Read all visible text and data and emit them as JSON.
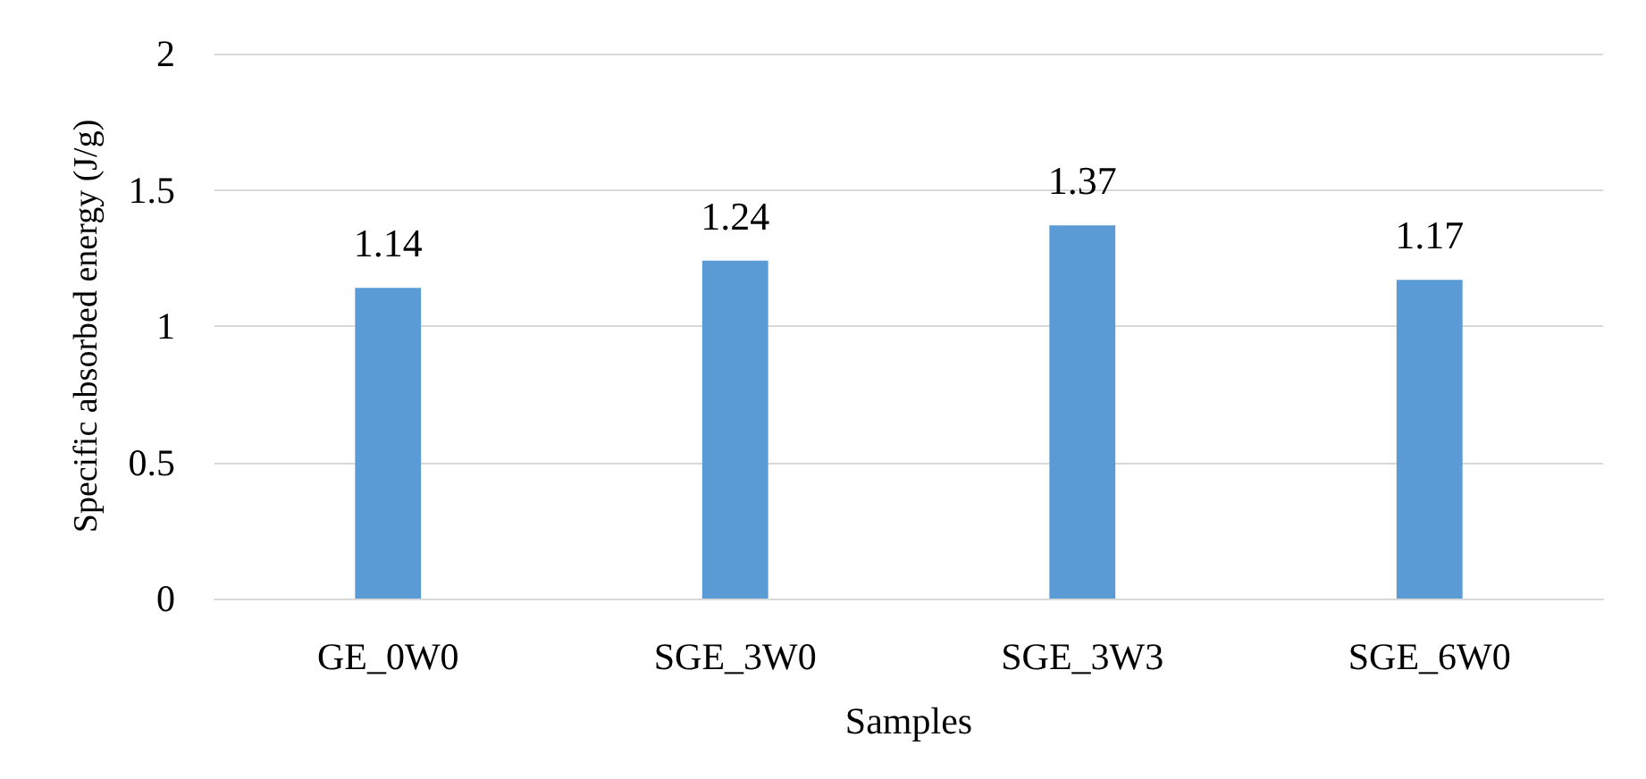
{
  "chart_data": {
    "type": "bar",
    "xlabel": "Samples",
    "ylabel": "Specific absorbed energy (J/g)",
    "categories": [
      "GE_0W0",
      "SGE_3W0",
      "SGE_3W3",
      "SGE_6W0"
    ],
    "values": [
      1.14,
      1.24,
      1.37,
      1.17
    ],
    "color": "#5b9bd5",
    "ylim": [
      0,
      2
    ],
    "yticks": [
      0,
      0.5,
      1,
      1.5,
      2
    ],
    "grid": "y",
    "data_labels": true
  }
}
